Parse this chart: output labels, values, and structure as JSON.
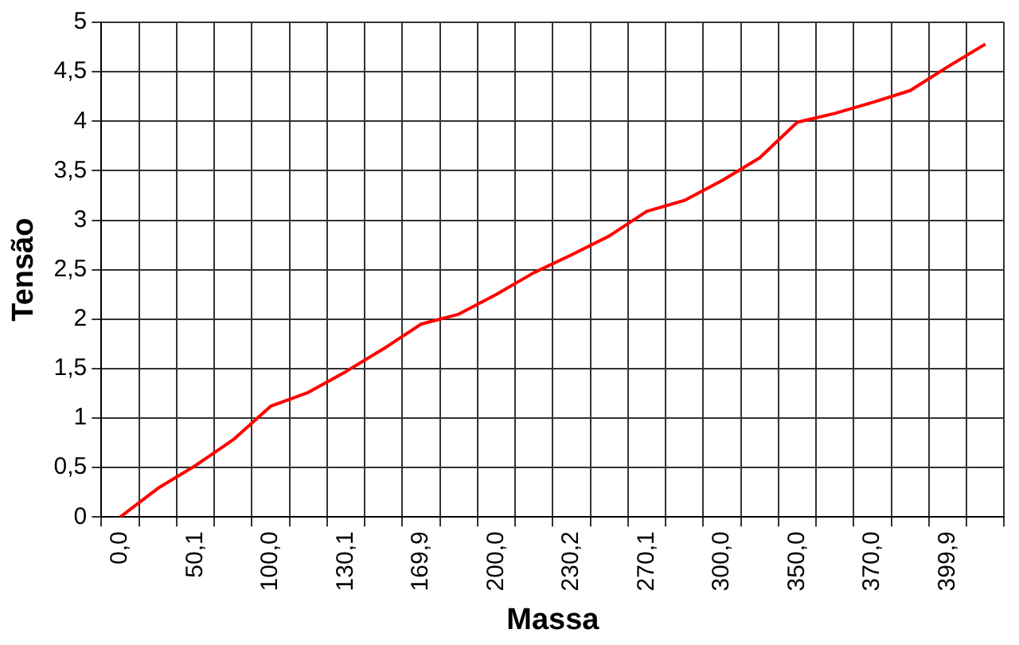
{
  "chart_data": {
    "type": "line",
    "xlabel": "Massa",
    "ylabel": "Tensão",
    "categories": [
      "0,0",
      null,
      "50,1",
      null,
      "100,0",
      null,
      "130,1",
      null,
      "169,9",
      null,
      "200,0",
      null,
      "230,2",
      null,
      "270,1",
      null,
      "300,0",
      null,
      "350,0",
      null,
      "370,0",
      null,
      "399,9",
      null
    ],
    "series": [
      {
        "color": "#ff0000",
        "values": [
          0,
          0.29,
          0.52,
          0.78,
          1.12,
          1.26,
          1.47,
          1.7,
          1.95,
          2.05,
          2.25,
          2.47,
          2.65,
          2.84,
          3.09,
          3.2,
          3.4,
          3.63,
          3.99,
          4.08,
          4.19,
          4.31,
          4.55,
          4.78
        ]
      }
    ],
    "ylim": [
      0,
      5
    ],
    "yticks": [
      0,
      {
        "value": 0.5,
        "label": "0,5"
      },
      1,
      {
        "value": 1.5,
        "label": "1,5"
      },
      2,
      {
        "value": 2.5,
        "label": "2,5"
      },
      3,
      {
        "value": 3.5,
        "label": "3,5"
      },
      4,
      {
        "value": 4.5,
        "label": "4,5"
      },
      5
    ],
    "grid": true,
    "legend": false,
    "marker": "none",
    "line_style": "solid"
  }
}
